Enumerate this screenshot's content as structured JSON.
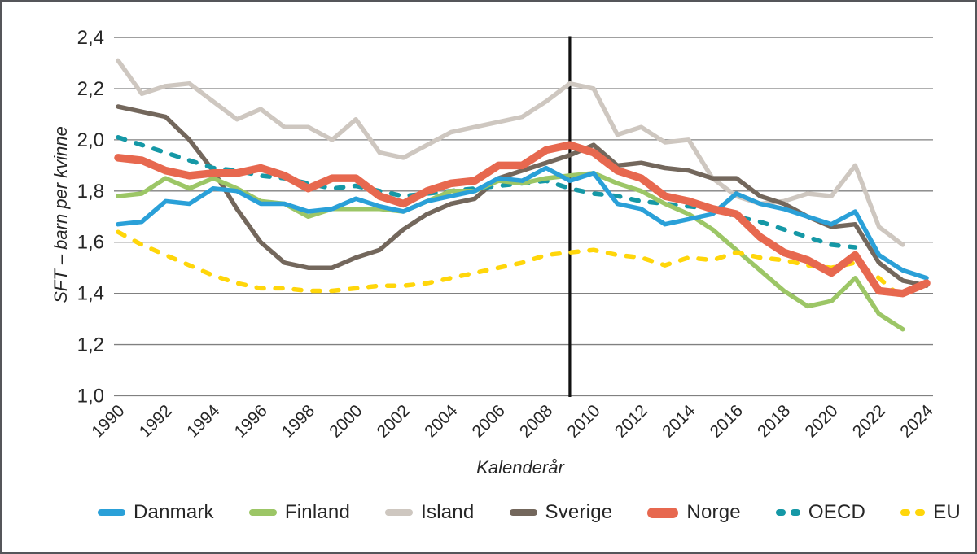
{
  "figure": {
    "background": "#ffffff",
    "border_color": "#55565a"
  },
  "chart_data": {
    "type": "line",
    "title": "",
    "xlabel": "Kalenderår",
    "ylabel": "SFT – barn per kvinne",
    "x_range": [
      1990,
      2024
    ],
    "ylim": [
      1.0,
      2.4
    ],
    "grid": true,
    "grid_color": "#808080",
    "legend_position": "bottom",
    "x_ticks": [
      1990,
      1992,
      1994,
      1996,
      1998,
      2000,
      2002,
      2004,
      2006,
      2008,
      2010,
      2012,
      2014,
      2016,
      2018,
      2020,
      2022,
      2024
    ],
    "y_ticks": [
      {
        "value": 1.0,
        "label": "1,0"
      },
      {
        "value": 1.2,
        "label": "1,2"
      },
      {
        "value": 1.4,
        "label": "1,4"
      },
      {
        "value": 1.6,
        "label": "1,6"
      },
      {
        "value": 1.8,
        "label": "1,8"
      },
      {
        "value": 2.0,
        "label": "2,0"
      },
      {
        "value": 2.2,
        "label": "2,2"
      },
      {
        "value": 2.4,
        "label": "2,4"
      }
    ],
    "marker_line": {
      "x": 2009,
      "color": "#111111"
    },
    "start_year": 1990,
    "draw_order": [
      "Island",
      "Sverige",
      "OECD",
      "Finland",
      "EU",
      "Danmark",
      "Norge"
    ],
    "series": [
      {
        "name": "Danmark",
        "color": "#2aa0d8",
        "style": "solid",
        "width": 5.5,
        "swatch": "line",
        "values": [
          1.67,
          1.68,
          1.76,
          1.75,
          1.81,
          1.8,
          1.75,
          1.75,
          1.72,
          1.73,
          1.77,
          1.74,
          1.72,
          1.76,
          1.78,
          1.8,
          1.85,
          1.84,
          1.89,
          1.84,
          1.87,
          1.75,
          1.73,
          1.67,
          1.69,
          1.71,
          1.79,
          1.75,
          1.73,
          1.7,
          1.67,
          1.72,
          1.55,
          1.49,
          1.46
        ]
      },
      {
        "name": "Finland",
        "color": "#9cc666",
        "style": "solid",
        "width": 5.5,
        "swatch": "line",
        "values": [
          1.78,
          1.79,
          1.85,
          1.81,
          1.85,
          1.81,
          1.76,
          1.75,
          1.7,
          1.73,
          1.73,
          1.73,
          1.72,
          1.76,
          1.8,
          1.8,
          1.84,
          1.83,
          1.85,
          1.86,
          1.87,
          1.83,
          1.8,
          1.75,
          1.71,
          1.65,
          1.57,
          1.49,
          1.41,
          1.35,
          1.37,
          1.46,
          1.32,
          1.26
        ]
      },
      {
        "name": "Island",
        "color": "#cec7c0",
        "style": "solid",
        "width": 5.5,
        "swatch": "line",
        "values": [
          2.31,
          2.18,
          2.21,
          2.22,
          2.15,
          2.08,
          2.12,
          2.05,
          2.05,
          2.0,
          2.08,
          1.95,
          1.93,
          1.98,
          2.03,
          2.05,
          2.07,
          2.09,
          2.15,
          2.22,
          2.2,
          2.02,
          2.05,
          1.99,
          2.0,
          1.85,
          1.78,
          1.75,
          1.76,
          1.79,
          1.78,
          1.9,
          1.66,
          1.59
        ]
      },
      {
        "name": "Sverige",
        "color": "#73675c",
        "style": "solid",
        "width": 5.5,
        "swatch": "line",
        "values": [
          2.13,
          2.11,
          2.09,
          2.0,
          1.88,
          1.73,
          1.6,
          1.52,
          1.5,
          1.5,
          1.54,
          1.57,
          1.65,
          1.71,
          1.75,
          1.77,
          1.85,
          1.88,
          1.91,
          1.94,
          1.98,
          1.9,
          1.91,
          1.89,
          1.88,
          1.85,
          1.85,
          1.78,
          1.75,
          1.7,
          1.66,
          1.67,
          1.52,
          1.45,
          1.43
        ]
      },
      {
        "name": "Norge",
        "color": "#e7684f",
        "style": "solid",
        "width": 9.5,
        "swatch": "thick",
        "values": [
          1.93,
          1.92,
          1.88,
          1.86,
          1.87,
          1.87,
          1.89,
          1.86,
          1.81,
          1.85,
          1.85,
          1.78,
          1.75,
          1.8,
          1.83,
          1.84,
          1.9,
          1.9,
          1.96,
          1.98,
          1.95,
          1.88,
          1.85,
          1.78,
          1.76,
          1.73,
          1.71,
          1.62,
          1.56,
          1.53,
          1.48,
          1.55,
          1.41,
          1.4,
          1.44
        ]
      },
      {
        "name": "OECD",
        "color": "#1598a6",
        "style": "dashed",
        "width": 5.5,
        "swatch": "dashes",
        "values": [
          2.01,
          1.98,
          1.95,
          1.92,
          1.89,
          1.88,
          1.86,
          1.85,
          1.83,
          1.81,
          1.82,
          1.8,
          1.78,
          1.79,
          1.8,
          1.81,
          1.82,
          1.83,
          1.84,
          1.81,
          1.79,
          1.78,
          1.76,
          1.75,
          1.74,
          1.73,
          1.7,
          1.68,
          1.65,
          1.62,
          1.59,
          1.58
        ]
      },
      {
        "name": "EU",
        "color": "#ffd60a",
        "style": "dashed",
        "width": 5.5,
        "swatch": "dashes",
        "values": [
          1.64,
          1.59,
          1.55,
          1.51,
          1.47,
          1.44,
          1.42,
          1.42,
          1.41,
          1.41,
          1.42,
          1.43,
          1.43,
          1.44,
          1.46,
          1.48,
          1.5,
          1.52,
          1.55,
          1.56,
          1.57,
          1.55,
          1.54,
          1.51,
          1.54,
          1.53,
          1.56,
          1.54,
          1.53,
          1.51,
          1.5,
          1.52,
          1.46,
          1.38
        ]
      }
    ]
  }
}
